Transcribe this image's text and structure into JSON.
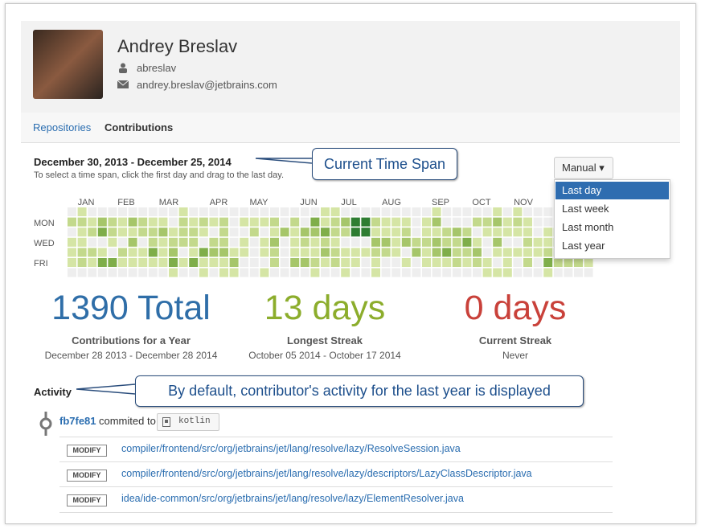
{
  "profile": {
    "name": "Andrey Breslav",
    "username": "abreslav",
    "email": "andrey.breslav@jetbrains.com"
  },
  "tabs": [
    "Repositories",
    "Contributions"
  ],
  "time_span": {
    "range": "December 30, 2013 - December 25, 2014",
    "hint": "To select a time span, click the first day and drag to the last day."
  },
  "callouts": [
    "Current Time Span",
    "By default, contributor's activity for the last year is displayed"
  ],
  "dropdown": {
    "button": "Manual",
    "options": [
      "Last day",
      "Last week",
      "Last month",
      "Last year"
    ]
  },
  "calendar": {
    "months": [
      "JAN",
      "FEB",
      "MAR",
      "APR",
      "MAY",
      "JUN",
      "JUL",
      "AUG",
      "SEP",
      "OCT",
      "NOV"
    ],
    "days": [
      "MON",
      "WED",
      "FRI"
    ]
  },
  "stats": [
    {
      "value": "1390 Total",
      "label": "Contributions for a Year",
      "detail": "December 28 2013 - December 28 2014"
    },
    {
      "value": "13 days",
      "label": "Longest Streak",
      "detail": "October 05 2014 - October 17 2014"
    },
    {
      "value": "0 days",
      "label": "Current Streak",
      "detail": "Never"
    }
  ],
  "activity": {
    "title": "Activity",
    "commit": "fb7fe81",
    "action": "commited to",
    "repo": "kotlin",
    "changes": [
      {
        "type": "MODIFY",
        "path": "compiler/frontend/src/org/jetbrains/jet/lang/resolve/lazy/ResolveSession.java"
      },
      {
        "type": "MODIFY",
        "path": "compiler/frontend/src/org/jetbrains/jet/lang/resolve/lazy/descriptors/LazyClassDescriptor.java"
      },
      {
        "type": "MODIFY",
        "path": "idea/ide-common/src/org/jetbrains/jet/lang/resolve/lazy/ElementResolver.java"
      }
    ]
  }
}
